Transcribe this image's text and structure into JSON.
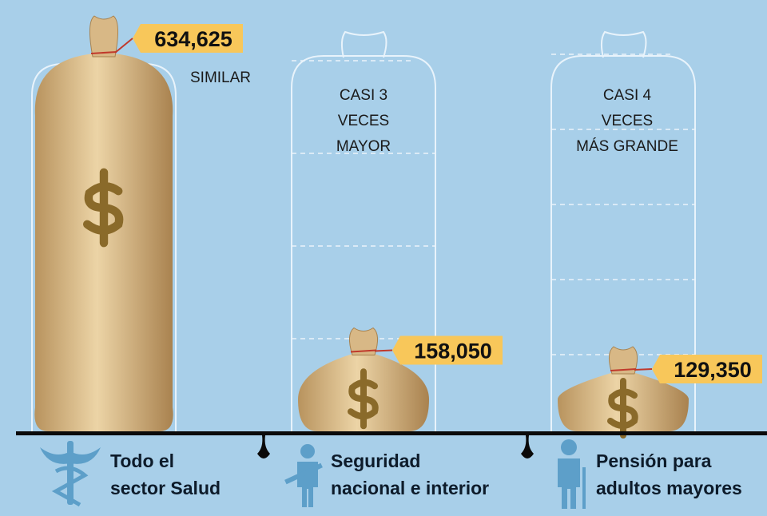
{
  "chart_data": {
    "type": "bar",
    "categories": [
      "Todo el\nsector Salud",
      "Seguridad\nnacional e interior",
      "Pensión para\nadultos mayores"
    ],
    "values": [
      634625,
      158050,
      129350
    ],
    "value_labels": [
      "634,625",
      "158,050",
      "129,350"
    ],
    "annotations": [
      "SIMILAR",
      "CASI 3\nVECES\nMAYOR",
      "CASI 4\nVECES\nMÁS GRANDE"
    ],
    "color": "#d8b886",
    "tag_color": "#f8c75a"
  }
}
